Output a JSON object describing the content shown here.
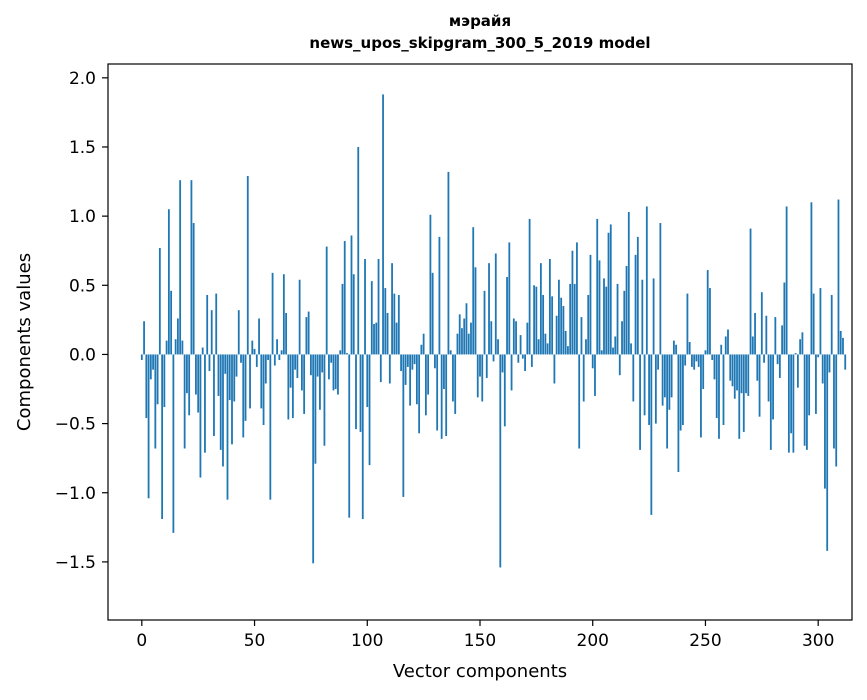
{
  "chart_data": {
    "type": "bar",
    "title_line1": "мэрайя",
    "title_line2": "news_upos_skipgram_300_5_2019 model",
    "xlabel": "Vector components",
    "ylabel": "Components values",
    "xlim": [
      -15,
      315
    ],
    "ylim": [
      -1.92,
      2.1
    ],
    "x_ticks": [
      0,
      50,
      100,
      150,
      200,
      250,
      300
    ],
    "x_tick_labels": [
      "0",
      "50",
      "100",
      "150",
      "200",
      "250",
      "300"
    ],
    "y_ticks": [
      -1.5,
      -1.0,
      -0.5,
      0.0,
      0.5,
      1.0,
      1.5,
      2.0
    ],
    "y_tick_labels": [
      "−1.5",
      "−1.0",
      "−0.5",
      "0.0",
      "0.5",
      "1.0",
      "1.5",
      "2.0"
    ],
    "bar_color": "#1f77b4",
    "values": [
      -0.04,
      0.24,
      -0.46,
      -1.04,
      -0.18,
      -0.11,
      -0.68,
      -0.36,
      0.77,
      -1.19,
      -0.38,
      0.1,
      1.05,
      0.46,
      -1.29,
      0.11,
      0.26,
      1.26,
      0.1,
      -0.68,
      -0.28,
      -0.44,
      1.26,
      0.95,
      -0.29,
      -0.42,
      -0.89,
      0.05,
      -0.71,
      0.43,
      -0.12,
      0.32,
      -0.59,
      0.44,
      -0.3,
      -0.69,
      -0.81,
      -0.14,
      -1.05,
      -0.33,
      -0.65,
      -0.34,
      -0.16,
      0.32,
      -0.06,
      -0.6,
      -0.48,
      1.29,
      -0.39,
      0.1,
      0.04,
      -0.09,
      0.26,
      -0.39,
      -0.51,
      -0.21,
      -0.04,
      -1.05,
      0.59,
      -0.08,
      0.11,
      -0.04,
      0.03,
      0.58,
      0.3,
      -0.47,
      -0.24,
      -0.46,
      -0.11,
      -0.17,
      0.54,
      -0.26,
      -0.43,
      0.27,
      0.31,
      -0.15,
      -1.51,
      -0.79,
      -0.16,
      -0.4,
      -0.13,
      -0.66,
      0.78,
      -0.18,
      -0.06,
      -0.26,
      -0.25,
      -0.29,
      0.03,
      0.51,
      0.82,
      0.01,
      -1.18,
      0.86,
      0.58,
      -0.54,
      1.5,
      -0.56,
      -1.19,
      0.69,
      -0.38,
      -0.8,
      0.53,
      0.22,
      0.23,
      0.69,
      -0.2,
      1.88,
      0.48,
      0.3,
      -0.21,
      0.66,
      0.44,
      0.23,
      0.43,
      -0.12,
      -1.03,
      -0.22,
      -0.09,
      -0.37,
      -0.11,
      -0.07,
      -0.36,
      -0.57,
      0.07,
      0.15,
      -0.44,
      -0.29,
      1.01,
      0.59,
      -0.1,
      -0.55,
      0.85,
      -0.61,
      -0.25,
      -0.59,
      1.32,
      0.03,
      -0.34,
      -0.43,
      0.15,
      0.29,
      0.19,
      0.26,
      0.37,
      0.15,
      0.23,
      0.92,
      0.63,
      -0.31,
      -0.16,
      -0.34,
      0.46,
      -0.17,
      0.66,
      0.24,
      -0.05,
      0.73,
      0.11,
      -1.54,
      -0.13,
      -0.52,
      0.56,
      0.81,
      -0.26,
      0.26,
      0.24,
      -0.06,
      0.14,
      -0.03,
      -0.12,
      0.23,
      0.98,
      -0.09,
      0.5,
      0.49,
      0.11,
      0.66,
      0.43,
      0.15,
      0.08,
      0.69,
      0.42,
      -0.21,
      0.28,
      0.54,
      0.41,
      0.35,
      0.17,
      0.06,
      0.51,
      0.75,
      0.51,
      0.81,
      -0.68,
      0.27,
      -0.34,
      0.11,
      0.43,
      0.72,
      -0.1,
      -0.3,
      0.98,
      0.68,
      0.03,
      0.55,
      0.49,
      0.88,
      0.94,
      0.05,
      0.13,
      0.51,
      -0.15,
      0.24,
      0.46,
      0.64,
      1.03,
      0.08,
      -0.34,
      0.72,
      0.85,
      -0.69,
      0.54,
      -0.44,
      1.07,
      -0.51,
      -1.16,
      0.55,
      -0.5,
      -0.11,
      0.95,
      -0.37,
      -0.31,
      -0.68,
      -0.4,
      -0.31,
      0.1,
      0.07,
      -0.85,
      -0.55,
      -0.51,
      -0.08,
      0.44,
      0.09,
      -0.09,
      -0.11,
      -0.05,
      -0.09,
      -0.6,
      -0.25,
      0.03,
      0.61,
      0.48,
      -0.04,
      -0.18,
      -0.46,
      -0.61,
      0.07,
      -0.51,
      0.13,
      0.18,
      -0.19,
      -0.23,
      -0.32,
      -0.26,
      -0.61,
      -0.28,
      -0.56,
      -0.28,
      -0.3,
      0.91,
      0.13,
      0.3,
      -0.19,
      -0.45,
      0.45,
      -0.06,
      0.28,
      -0.34,
      -0.69,
      -0.47,
      0.27,
      -0.07,
      -0.17,
      0.21,
      0.52,
      1.07,
      -0.71,
      -0.57,
      -0.71,
      0.01,
      -0.24,
      0.11,
      0.16,
      -0.66,
      -0.69,
      -0.44,
      1.1,
      0.44,
      -0.43,
      -0.02,
      0.48,
      -0.21,
      -0.97,
      -1.42,
      -0.13,
      0.43,
      -0.68,
      -0.81,
      1.12,
      0.17,
      0.12,
      -0.11
    ]
  }
}
